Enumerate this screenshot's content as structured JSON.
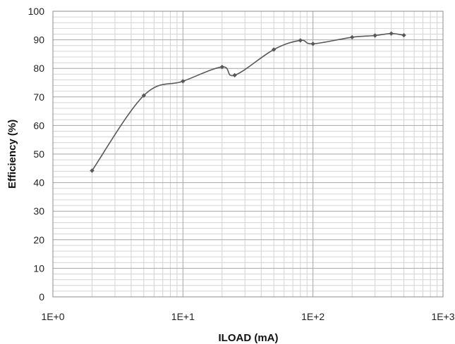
{
  "chart_data": {
    "type": "line",
    "title": "",
    "xlabel": "ILOAD (mA)",
    "ylabel": "Efficiency (%)",
    "x_scale": "log",
    "xlim": [
      1,
      1000
    ],
    "ylim": [
      0,
      100
    ],
    "x_ticks": [
      1,
      10,
      100,
      1000
    ],
    "x_tick_labels": [
      "1E+0",
      "1E+1",
      "1E+2",
      "1E+3"
    ],
    "y_ticks": [
      0,
      10,
      20,
      30,
      40,
      50,
      60,
      70,
      80,
      90,
      100
    ],
    "y_tick_labels": [
      "0",
      "10",
      "20",
      "30",
      "40",
      "50",
      "60",
      "70",
      "80",
      "90",
      "100"
    ],
    "grid": true,
    "minor_grid": true,
    "legend": "none",
    "series": [
      {
        "color": "#595959",
        "marker": "diamond",
        "x": [
          2,
          5,
          10,
          20,
          25,
          50,
          80,
          100,
          200,
          300,
          400,
          500
        ],
        "y": [
          44.2,
          70.5,
          75.5,
          80.5,
          77.6,
          86.6,
          89.8,
          88.6,
          90.9,
          91.5,
          92.2,
          91.6
        ]
      }
    ]
  }
}
